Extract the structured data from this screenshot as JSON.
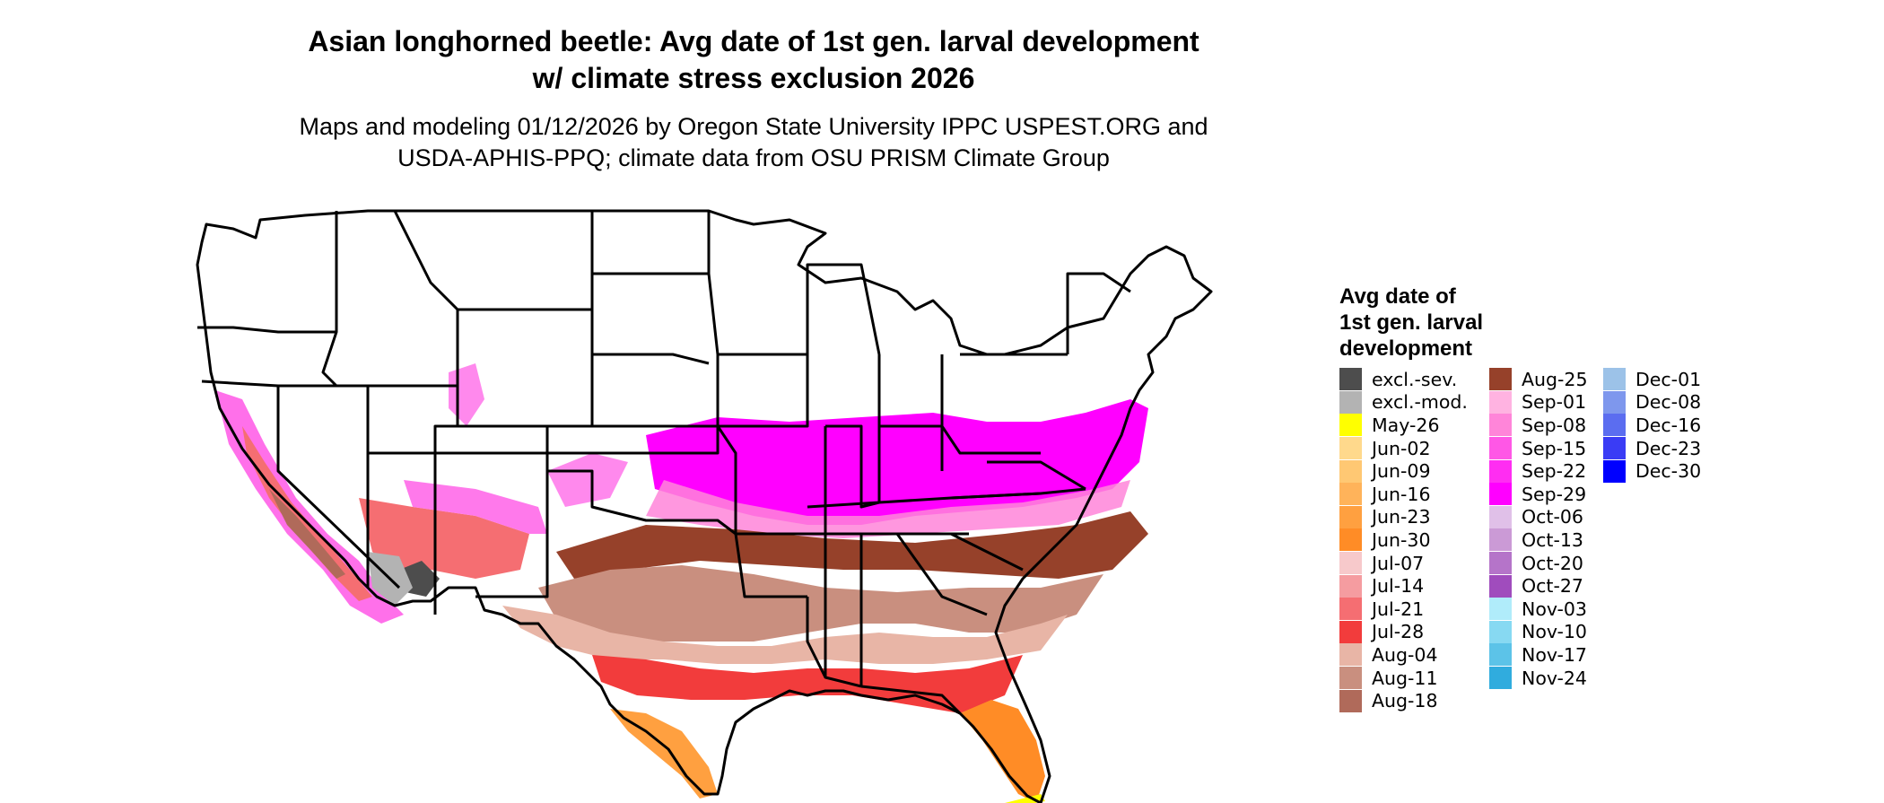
{
  "title": {
    "line1": "Asian longhorned beetle: Avg date of 1st gen. larval development",
    "line2": "w/ climate stress exclusion 2026"
  },
  "subtitle": {
    "line1": "Maps and modeling 01/12/2026 by Oregon State University IPPC USPEST.ORG and",
    "line2": "USDA-APHIS-PPQ; climate data from OSU PRISM Climate Group"
  },
  "legend": {
    "title_lines": [
      "Avg date of",
      "1st gen. larval",
      "development"
    ],
    "items": [
      {
        "label": "excl.-sev.",
        "color": "#4d4d4d"
      },
      {
        "label": "excl.-mod.",
        "color": "#b3b3b3"
      },
      {
        "label": "May-26",
        "color": "#ffff00"
      },
      {
        "label": "Jun-02",
        "color": "#ffd98c"
      },
      {
        "label": "Jun-09",
        "color": "#ffc873"
      },
      {
        "label": "Jun-16",
        "color": "#ffb35a"
      },
      {
        "label": "Jun-23",
        "color": "#ffa040"
      },
      {
        "label": "Jun-30",
        "color": "#ff8c26"
      },
      {
        "label": "Jul-07",
        "color": "#f7c9cb"
      },
      {
        "label": "Jul-14",
        "color": "#f59ca0"
      },
      {
        "label": "Jul-21",
        "color": "#f56e72"
      },
      {
        "label": "Jul-28",
        "color": "#f23c3c"
      },
      {
        "label": "Aug-04",
        "color": "#e8b5a6"
      },
      {
        "label": "Aug-11",
        "color": "#c98f7f"
      },
      {
        "label": "Aug-18",
        "color": "#b06a5a"
      },
      {
        "label": "Aug-25",
        "color": "#96412a"
      },
      {
        "label": "Sep-01",
        "color": "#ffb3e1"
      },
      {
        "label": "Sep-08",
        "color": "#ff85d9"
      },
      {
        "label": "Sep-15",
        "color": "#ff57e6"
      },
      {
        "label": "Sep-22",
        "color": "#ff2df2"
      },
      {
        "label": "Sep-29",
        "color": "#ff00ff"
      },
      {
        "label": "Oct-06",
        "color": "#e0c0e8"
      },
      {
        "label": "Oct-13",
        "color": "#cb9ad6"
      },
      {
        "label": "Oct-20",
        "color": "#b574c9"
      },
      {
        "label": "Oct-27",
        "color": "#a04cbd"
      },
      {
        "label": "Nov-03",
        "color": "#b0ecfa"
      },
      {
        "label": "Nov-10",
        "color": "#87d9f2"
      },
      {
        "label": "Nov-17",
        "color": "#5cc3e8"
      },
      {
        "label": "Nov-24",
        "color": "#30acde"
      },
      {
        "label": "Dec-01",
        "color": "#9cc2e8"
      },
      {
        "label": "Dec-08",
        "color": "#7e97ed"
      },
      {
        "label": "Dec-16",
        "color": "#5b6df0"
      },
      {
        "label": "Dec-23",
        "color": "#3a3cf5"
      },
      {
        "label": "Dec-30",
        "color": "#0000ff"
      }
    ]
  }
}
